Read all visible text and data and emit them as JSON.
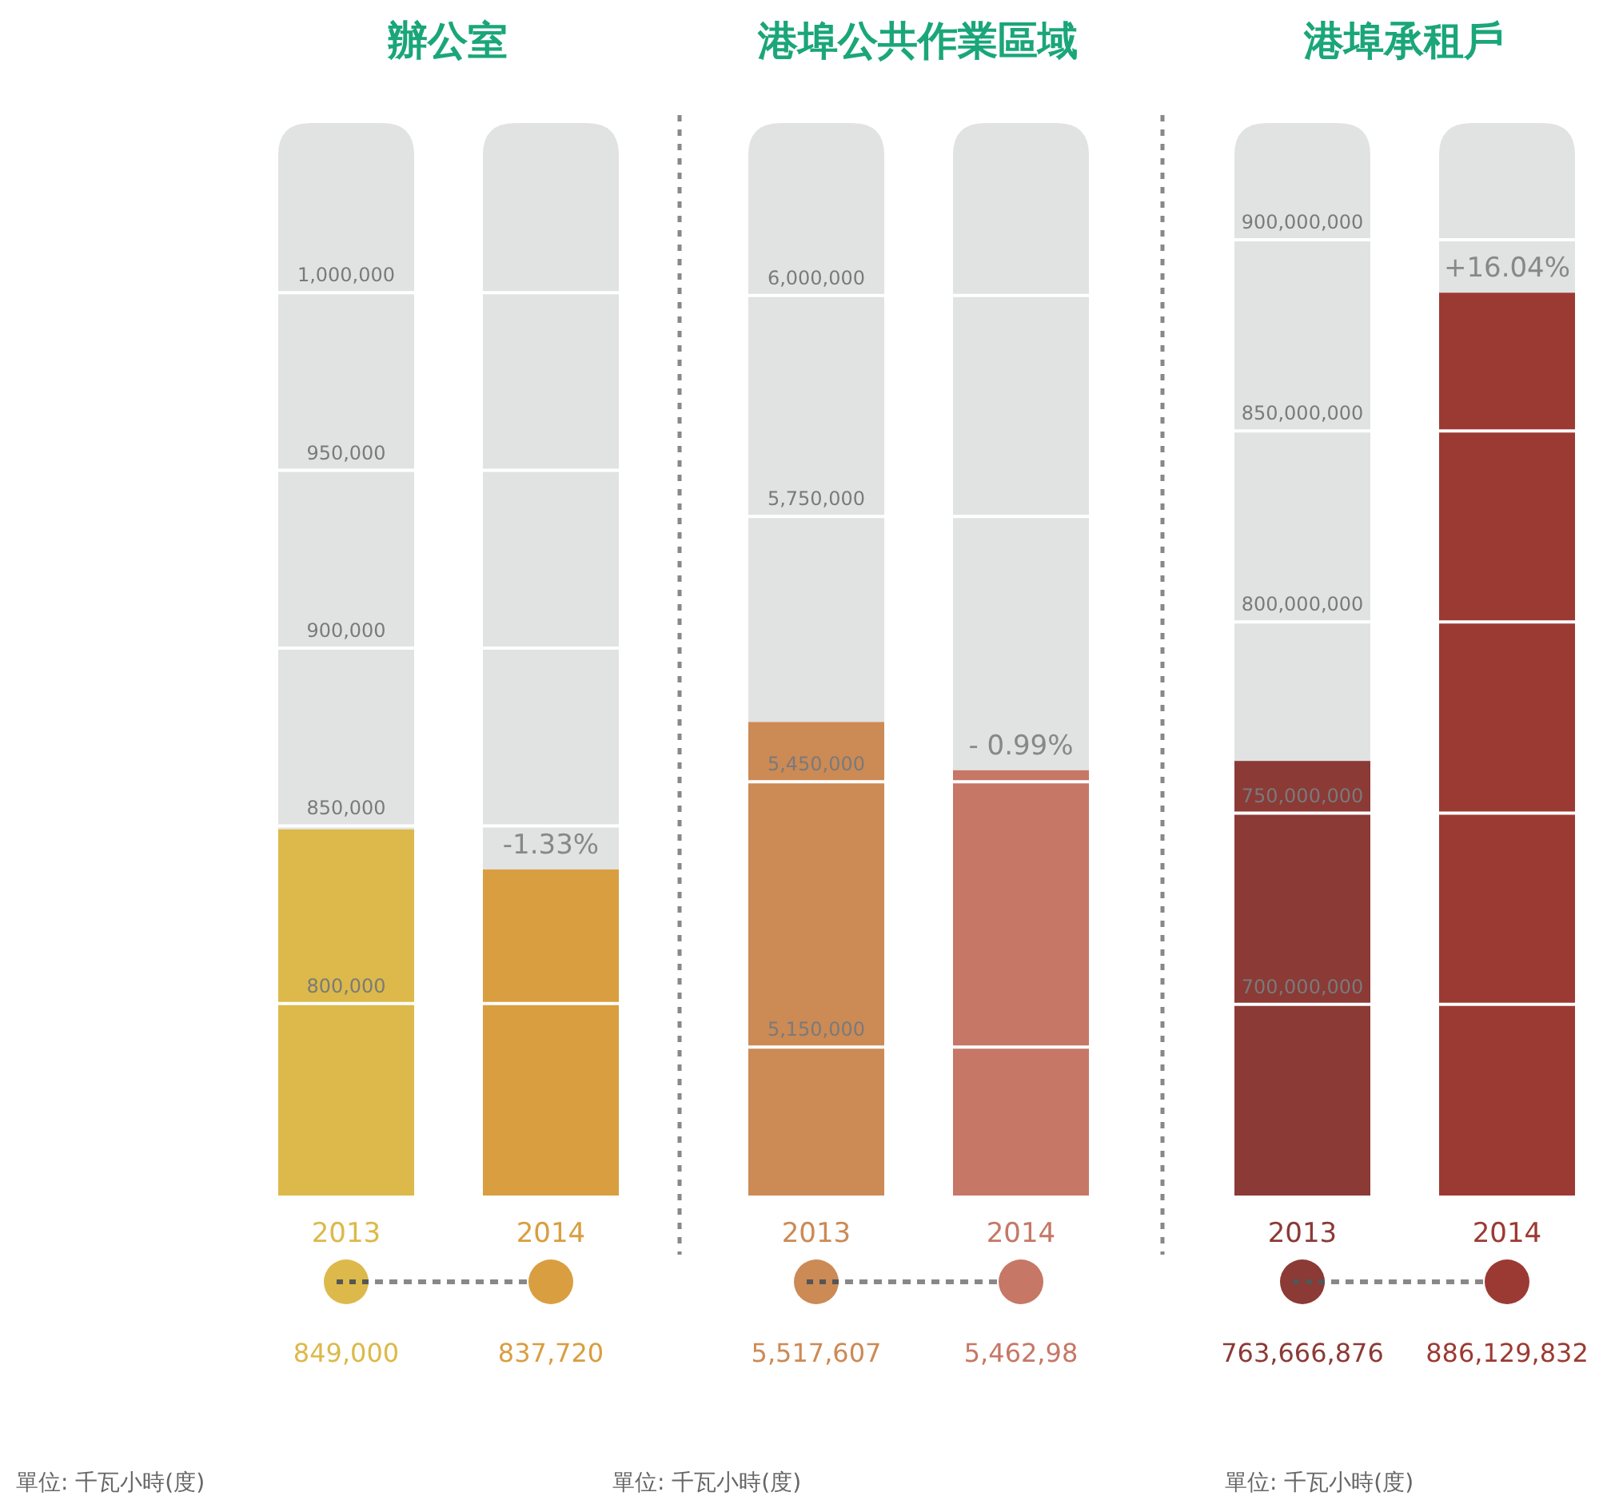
{
  "chart_data": [
    {
      "type": "bar",
      "title": "辦公室",
      "categories": [
        "2013",
        "2014"
      ],
      "values": [
        849000,
        837720
      ],
      "colors": [
        "#dcb94a",
        "#d99e40"
      ],
      "value_labels": [
        "849,000",
        "837,720"
      ],
      "ylim": [
        746000,
        1047700
      ],
      "yticks": [
        {
          "value": 800000,
          "label": "800,000"
        },
        {
          "value": 850000,
          "label": "850,000"
        },
        {
          "value": 900000,
          "label": "900,000"
        },
        {
          "value": 950000,
          "label": "950,000"
        },
        {
          "value": 1000000,
          "label": "1,000,000"
        }
      ],
      "grid": "y",
      "annotations": [
        {
          "text": "-1.33%",
          "x": "2014",
          "y": 837720
        },
        "單位: 千瓦小時(度)"
      ]
    },
    {
      "type": "bar",
      "title": "港埠公共作業區域",
      "categories": [
        "2013",
        "2014"
      ],
      "values": [
        5517607,
        5463000
      ],
      "colors": [
        "#cc8a55",
        "#c67766"
      ],
      "value_labels": [
        "5,517,607",
        "5,462,98"
      ],
      "ylim": [
        4982000,
        6195000
      ],
      "yticks": [
        {
          "value": 5150000,
          "label": "5,150,000"
        },
        {
          "value": 5450000,
          "label": "5,450,000"
        },
        {
          "value": 5750000,
          "label": "5,750,000"
        },
        {
          "value": 6000000,
          "label": "6,000,000"
        }
      ],
      "grid": "y",
      "annotations": [
        {
          "text": "- 0.99%",
          "x": "2014",
          "y": 5463000
        },
        "單位: 千瓦小時(度)"
      ]
    },
    {
      "type": "bar",
      "title": "港埠承租戶",
      "categories": [
        "2013",
        "2014"
      ],
      "values": [
        763666876,
        886129832
      ],
      "colors": [
        "#8b3a36",
        "#9b3a33"
      ],
      "value_labels": [
        "763,666,876",
        "886,129,832"
      ],
      "ylim": [
        650000000,
        930500000
      ],
      "yticks": [
        {
          "value": 700000000,
          "label": "700,000,000"
        },
        {
          "value": 750000000,
          "label": "750,000,000"
        },
        {
          "value": 800000000,
          "label": "800,000,000"
        },
        {
          "value": 850000000,
          "label": "850,000,000"
        },
        {
          "value": 900000000,
          "label": "900,000,000"
        }
      ],
      "grid": "y",
      "annotations": [
        {
          "text": "+16.04%",
          "x": "2014",
          "y": 886129832
        },
        "單位: 千瓦小時(度)"
      ]
    }
  ]
}
